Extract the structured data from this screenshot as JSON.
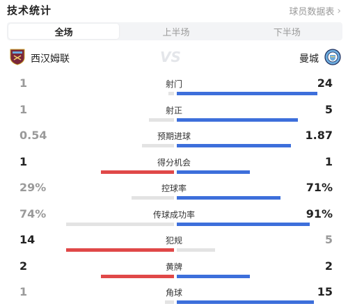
{
  "header": {
    "title": "技术统计",
    "link": "球员数据表",
    "link_icon": "chevron-right-icon"
  },
  "tabs": [
    {
      "label": "全场",
      "active": true
    },
    {
      "label": "上半场",
      "active": false
    },
    {
      "label": "下半场",
      "active": false
    }
  ],
  "teams": {
    "home": {
      "name": "西汉姆联",
      "icon": "west-ham-crest-icon",
      "color": "#7a263a"
    },
    "vs": "VS",
    "away": {
      "name": "曼城",
      "icon": "man-city-crest-icon",
      "color": "#6cabdd"
    }
  },
  "colors": {
    "home_bar": "#e04848",
    "away_bar": "#3d6fdb",
    "neutral_bar": "#e3e3e3"
  },
  "stats": [
    {
      "name": "射门",
      "home": "1",
      "away": "24",
      "home_frac": 0.04,
      "away_frac": 0.96,
      "leader": "away"
    },
    {
      "name": "射正",
      "home": "1",
      "away": "5",
      "home_frac": 0.17,
      "away_frac": 0.83,
      "leader": "away"
    },
    {
      "name": "预期进球",
      "home": "0.54",
      "away": "1.87",
      "home_frac": 0.22,
      "away_frac": 0.78,
      "leader": "away"
    },
    {
      "name": "得分机会",
      "home": "1",
      "away": "1",
      "home_frac": 0.5,
      "away_frac": 0.5,
      "leader": "both"
    },
    {
      "name": "控球率",
      "home": "29%",
      "away": "71%",
      "home_frac": 0.29,
      "away_frac": 0.71,
      "leader": "away"
    },
    {
      "name": "传球成功率",
      "home": "74%",
      "away": "91%",
      "home_frac": 0.74,
      "away_frac": 0.91,
      "leader": "away"
    },
    {
      "name": "犯规",
      "home": "14",
      "away": "5",
      "home_frac": 0.74,
      "away_frac": 0.26,
      "leader": "home"
    },
    {
      "name": "黄牌",
      "home": "2",
      "away": "2",
      "home_frac": 0.5,
      "away_frac": 0.5,
      "leader": "both"
    },
    {
      "name": "角球",
      "home": "1",
      "away": "15",
      "home_frac": 0.06,
      "away_frac": 0.94,
      "leader": "away"
    }
  ]
}
